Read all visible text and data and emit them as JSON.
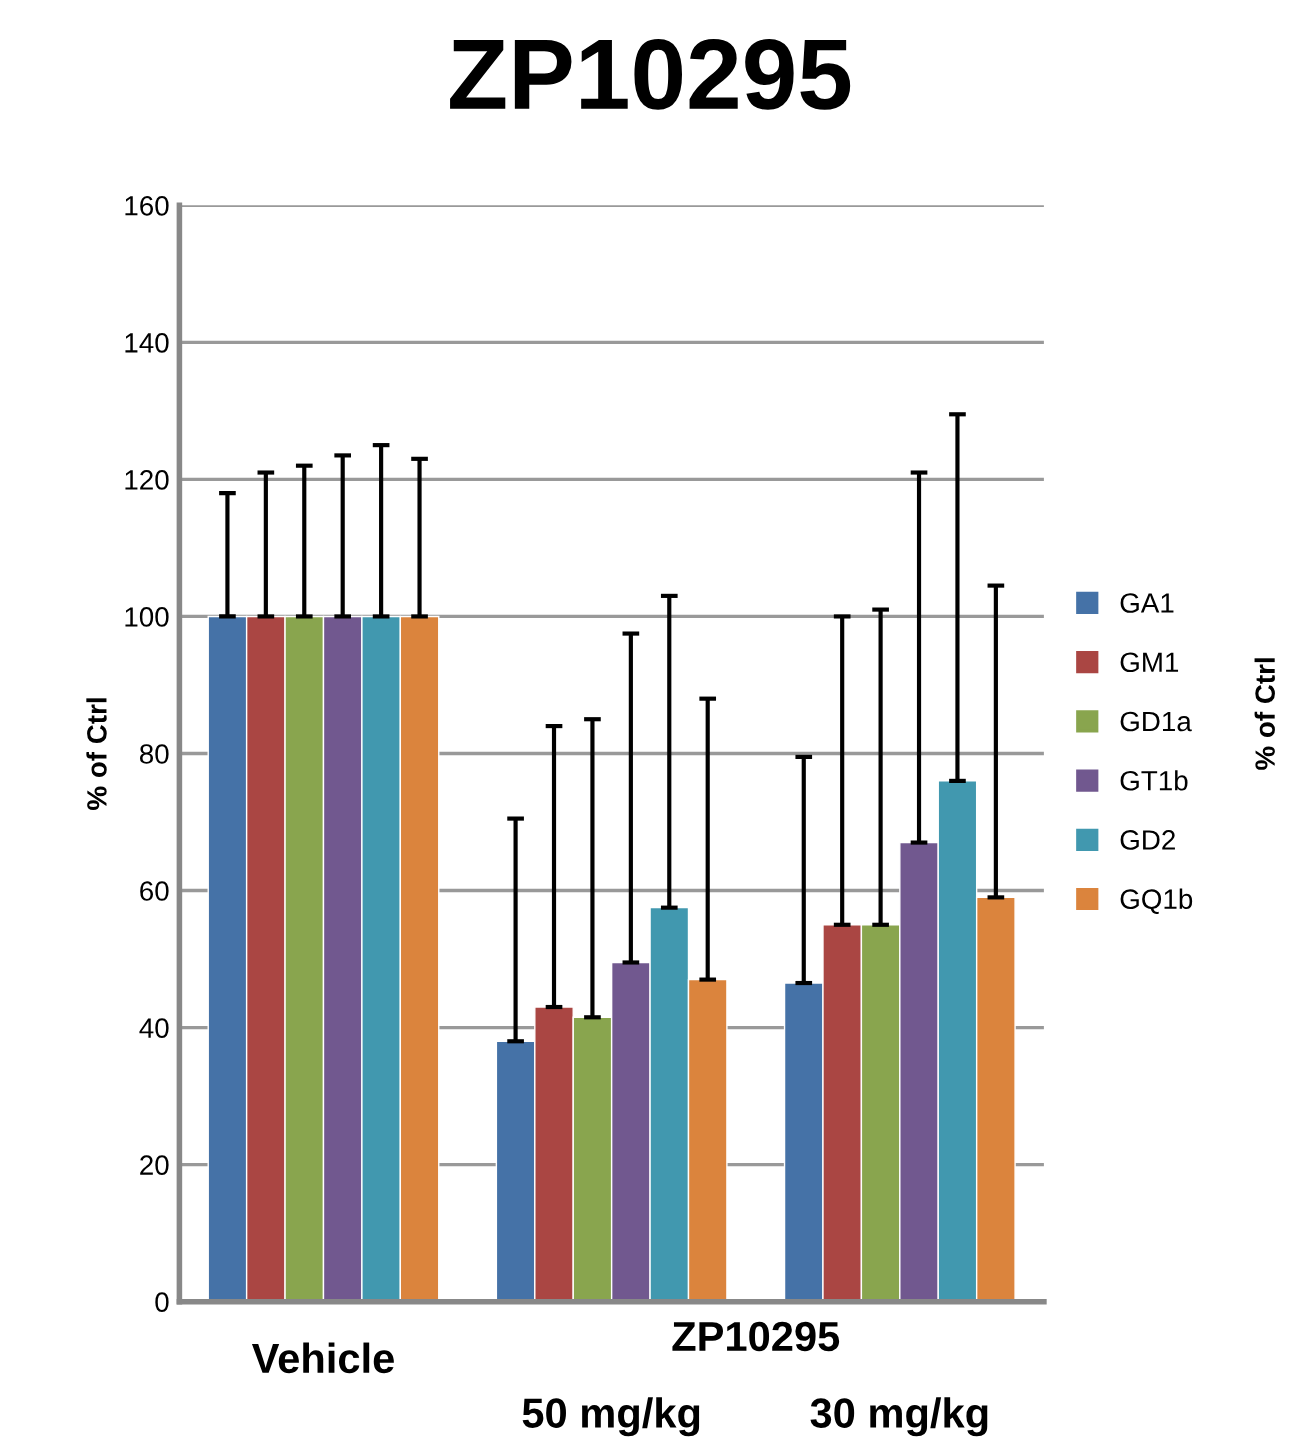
{
  "chart_data": {
    "type": "bar",
    "title": "ZP10295",
    "ylabel": "% of Ctrl",
    "categories": [
      "Vehicle",
      "50 mg/kg",
      "30 mg/kg"
    ],
    "annotations": [
      "ZP10295",
      "% of Ctrl"
    ],
    "series": [
      {
        "name": "GA1",
        "color": "#4572a7",
        "values": [
          100,
          38,
          46.5
        ],
        "errors": [
          [
            100,
            118
          ],
          [
            38,
            70.5
          ],
          [
            46.5,
            79.5
          ]
        ]
      },
      {
        "name": "GM1",
        "color": "#aa4643",
        "values": [
          100,
          43,
          55
        ],
        "errors": [
          [
            100,
            121
          ],
          [
            43,
            84
          ],
          [
            55,
            100
          ]
        ]
      },
      {
        "name": "GD1a",
        "color": "#89a54e",
        "values": [
          100,
          41.5,
          55
        ],
        "errors": [
          [
            100,
            122
          ],
          [
            41.5,
            85
          ],
          [
            55,
            101
          ]
        ]
      },
      {
        "name": "GT1b",
        "color": "#71588f",
        "values": [
          100,
          49.5,
          67
        ],
        "errors": [
          [
            100,
            123.5
          ],
          [
            49.5,
            97.5
          ],
          [
            67,
            121
          ]
        ]
      },
      {
        "name": "GD2",
        "color": "#4198af",
        "values": [
          100,
          57.5,
          76
        ],
        "errors": [
          [
            100,
            125
          ],
          [
            57.5,
            103
          ],
          [
            76,
            129.5
          ]
        ]
      },
      {
        "name": "GQ1b",
        "color": "#db843d",
        "values": [
          100,
          47,
          59
        ],
        "errors": [
          [
            100,
            123
          ],
          [
            47,
            88
          ],
          [
            59,
            104.5
          ]
        ]
      }
    ],
    "ylim": [
      0,
      160
    ],
    "yticks": [
      0,
      20,
      40,
      60,
      80,
      100,
      120,
      140,
      160
    ],
    "grid": "y",
    "legend": "right"
  }
}
